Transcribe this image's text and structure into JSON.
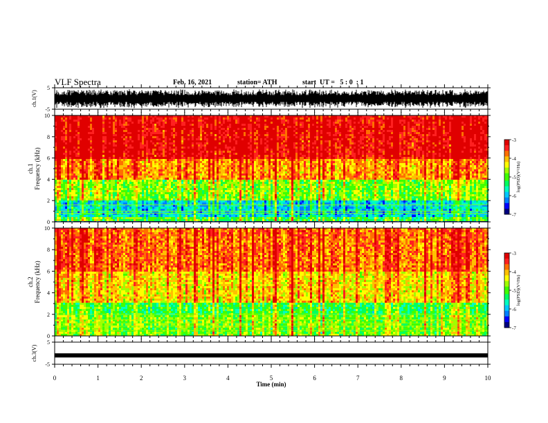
{
  "header": {
    "title": "VLF Spectra",
    "date": "Feb. 16, 2021",
    "station": "station= ATH",
    "start": "start  UT =   5 : 0  : 1"
  },
  "colors": {
    "palette": [
      "#000080",
      "#0000ff",
      "#0080ff",
      "#00c8ff",
      "#00ffc0",
      "#00ff60",
      "#40ff00",
      "#a0ff00",
      "#ffff00",
      "#ffc000",
      "#ff7000",
      "#ff2020",
      "#e00000"
    ],
    "black": "#000000"
  },
  "chart_data": [
    {
      "id": "ch1-waveform",
      "type": "line",
      "ylabel": "ch.1(V)",
      "ylim": [
        -5,
        5
      ],
      "yticks": [
        "5",
        "-5"
      ],
      "xlim": [
        0,
        10
      ],
      "description_values": {
        "typical_amplitude_range": [
          -5,
          5
        ]
      }
    },
    {
      "id": "ch1-spectrogram",
      "type": "heatmap",
      "ylabel_line1": "ch.1",
      "ylabel_line2": "Frequency (kHz)",
      "ylim": [
        0,
        10
      ],
      "yticks": [
        "0",
        "2",
        "4",
        "6",
        "8",
        "10"
      ],
      "xlim": [
        0,
        10
      ],
      "colorbar": {
        "label": "log(PSD)(V²/Hz)",
        "range": [
          -7,
          -3
        ],
        "ticks": [
          "-3",
          "-4",
          "-5",
          "-6",
          "-7"
        ]
      },
      "bands": [
        {
          "f_low": 6.0,
          "f_high": 10.0,
          "level": -3.3
        },
        {
          "f_low": 4.0,
          "f_high": 6.0,
          "level": -4.0
        },
        {
          "f_low": 2.0,
          "f_high": 4.0,
          "level": -4.9
        },
        {
          "f_low": 0.5,
          "f_high": 2.0,
          "level": -5.9
        },
        {
          "f_low": 0.0,
          "f_high": 0.5,
          "level": -5.2
        }
      ]
    },
    {
      "id": "ch2-spectrogram",
      "type": "heatmap",
      "ylabel_line1": "ch.2",
      "ylabel_line2": "Frequency (kHz)",
      "ylim": [
        0,
        10
      ],
      "yticks": [
        "0",
        "2",
        "4",
        "6",
        "8",
        "10"
      ],
      "xlim": [
        0,
        10
      ],
      "colorbar": {
        "label": "log(PSD)(V²/Hz)",
        "range": [
          -7,
          -3
        ],
        "ticks": [
          "-3",
          "-4",
          "-5",
          "-6",
          "-7"
        ]
      },
      "bands": [
        {
          "f_low": 6.0,
          "f_high": 10.0,
          "level": -3.8
        },
        {
          "f_low": 3.0,
          "f_high": 6.0,
          "level": -4.3
        },
        {
          "f_low": 2.0,
          "f_high": 3.0,
          "level": -5.2
        },
        {
          "f_low": 0.0,
          "f_high": 2.0,
          "level": -4.9
        }
      ]
    },
    {
      "id": "ch3-waveform",
      "type": "line",
      "ylabel": "ch.3(V)",
      "ylim": [
        -5,
        5
      ],
      "yticks": [
        "5",
        "-5"
      ],
      "xlim": [
        0,
        10
      ],
      "values_constant": -1.0
    }
  ],
  "xaxis": {
    "label": "Time (min)",
    "ticks": [
      "0",
      "1",
      "2",
      "3",
      "4",
      "5",
      "6",
      "7",
      "8",
      "9",
      "10"
    ]
  }
}
